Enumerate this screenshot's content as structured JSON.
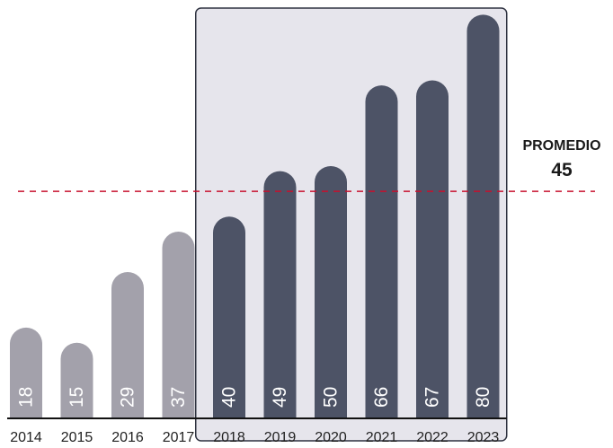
{
  "chart_data": {
    "type": "bar",
    "categories": [
      "2014",
      "2015",
      "2016",
      "2017",
      "2018",
      "2019",
      "2020",
      "2021",
      "2022",
      "2023"
    ],
    "values": [
      18,
      15,
      29,
      37,
      40,
      49,
      50,
      66,
      67,
      80
    ],
    "highlight_categories": [
      "2018",
      "2019",
      "2020",
      "2021",
      "2022",
      "2023"
    ],
    "average": {
      "label": "PROMEDIO",
      "value": "45",
      "y": 45
    },
    "ylim": [
      0,
      87
    ],
    "grid": false,
    "colors": {
      "base_bar": "#a3a1ab",
      "highlight_bar": "#4d5366",
      "highlight_panel": "#e6e5ec",
      "highlight_border": "#2e3240",
      "average_line": "#c8102e",
      "baseline": "#111111"
    }
  }
}
